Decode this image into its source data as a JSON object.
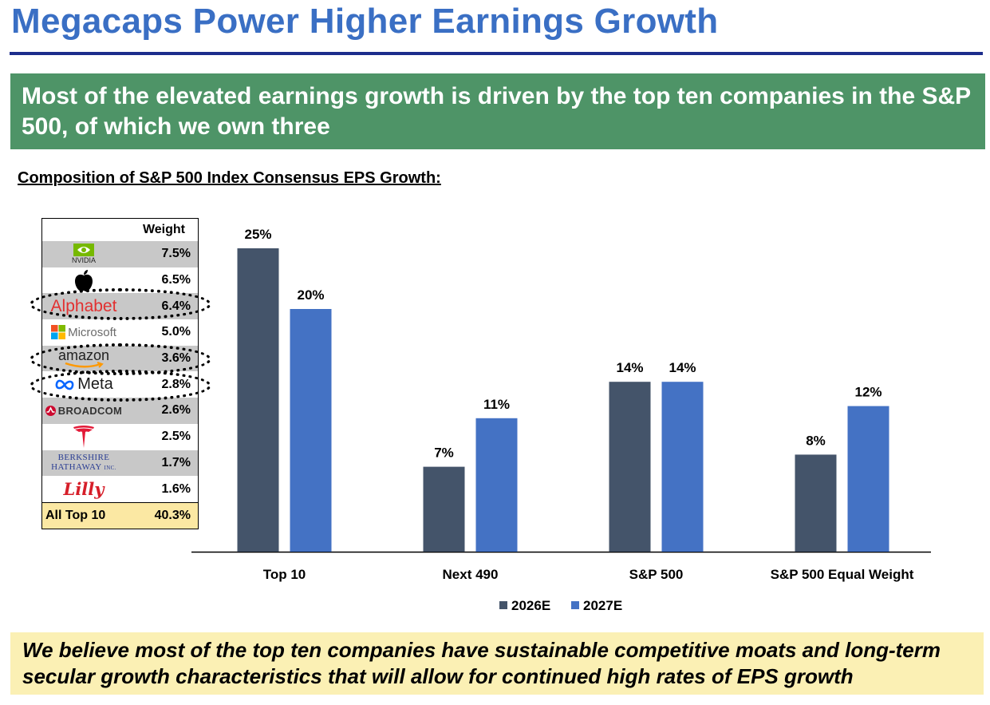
{
  "title": "Megacaps Power Higher Earnings Growth",
  "banner": "Most of the elevated earnings growth is driven by the top ten companies in the S&P 500, of which we own three",
  "subtitle": "Composition of S&P 500 Index Consensus EPS Growth:",
  "weight_table": {
    "header": "Weight",
    "rows": [
      {
        "company": "NVIDIA",
        "logo_icon": "nvidia-logo",
        "weight": "7.5%",
        "owned": false
      },
      {
        "company": "Apple",
        "logo_icon": "apple-logo",
        "weight": "6.5%",
        "owned": false
      },
      {
        "company": "Alphabet",
        "logo_icon": "alphabet-logo",
        "weight": "6.4%",
        "owned": true
      },
      {
        "company": "Microsoft",
        "logo_icon": "microsoft-logo",
        "weight": "5.0%",
        "owned": false
      },
      {
        "company": "amazon",
        "logo_icon": "amazon-logo",
        "weight": "3.6%",
        "owned": true
      },
      {
        "company": "Meta",
        "logo_icon": "meta-logo",
        "weight": "2.8%",
        "owned": true
      },
      {
        "company": "BROADCOM",
        "logo_icon": "broadcom-logo",
        "weight": "2.6%",
        "owned": false
      },
      {
        "company": "Tesla",
        "logo_icon": "tesla-logo",
        "weight": "2.5%",
        "owned": false
      },
      {
        "company": "Berkshire Hathaway inc.",
        "logo_icon": "berkshire-hathaway-logo",
        "weight": "1.7%",
        "owned": false
      },
      {
        "company": "Lilly",
        "logo_icon": "lilly-logo",
        "weight": "1.6%",
        "owned": false
      }
    ],
    "total": {
      "label": "All Top 10",
      "weight": "40.3%"
    }
  },
  "chart_data": {
    "type": "bar",
    "title": "Composition of S&P 500 Index Consensus EPS Growth:",
    "categories": [
      "Top 10",
      "Next 490",
      "S&P 500",
      "S&P 500 Equal Weight"
    ],
    "series": [
      {
        "name": "2026E",
        "values": [
          25,
          7,
          14,
          8
        ],
        "labels": [
          "25%",
          "7%",
          "14%",
          "8%"
        ],
        "color": "#44546a"
      },
      {
        "name": "2027E",
        "values": [
          20,
          11,
          14,
          12
        ],
        "labels": [
          "20%",
          "11%",
          "14%",
          "12%"
        ],
        "color": "#4472c4"
      }
    ],
    "ylim": [
      0,
      25
    ],
    "xlabel": "",
    "ylabel": "",
    "grid": false,
    "legend": "bottom"
  },
  "note": "We believe most of the top ten companies have sustainable competitive moats and long-term secular growth characteristics that will allow for continued high rates of EPS growth",
  "colors": {
    "title": "#3a6fc4",
    "rule": "#1c2d8c",
    "banner_bg": "#4e9467",
    "note_bg": "#fbf0b4",
    "total_bg": "#fbe8a3"
  }
}
